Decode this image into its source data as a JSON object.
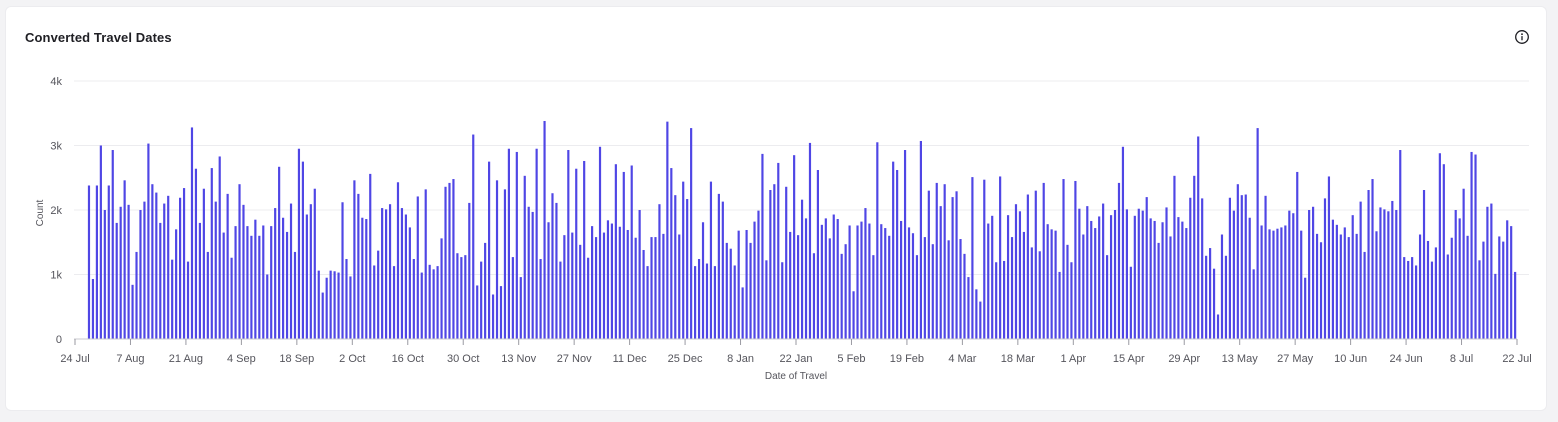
{
  "card": {
    "title": "Converted Travel Dates",
    "info_icon": "info-circle-icon"
  },
  "colors": {
    "bar": "#4f46e5",
    "grid": "#ececef",
    "axis": "#55555c"
  },
  "chart_data": {
    "type": "bar",
    "xlabel": "Date of Travel",
    "ylabel": "Count",
    "ylim": [
      0,
      4000
    ],
    "y_ticks": [
      {
        "value": 0,
        "label": "0"
      },
      {
        "value": 1000,
        "label": "1k"
      },
      {
        "value": 2000,
        "label": "2k"
      },
      {
        "value": 3000,
        "label": "3k"
      },
      {
        "value": 4000,
        "label": "4k"
      }
    ],
    "x_ticks": [
      "24 Jul",
      "7 Aug",
      "21 Aug",
      "4 Sep",
      "18 Sep",
      "2 Oct",
      "16 Oct",
      "30 Oct",
      "13 Nov",
      "27 Nov",
      "11 Dec",
      "25 Dec",
      "8 Jan",
      "22 Jan",
      "5 Feb",
      "19 Feb",
      "4 Mar",
      "18 Mar",
      "1 Apr",
      "15 Apr",
      "29 Apr",
      "13 May",
      "27 May",
      "10 Jun",
      "24 Jun",
      "8 Jul",
      "22 Jul"
    ],
    "grid": true,
    "legend": "none",
    "days_per_tick": 14,
    "values": [
      2380,
      930,
      2380,
      3000,
      2000,
      2380,
      2930,
      1800,
      2050,
      2460,
      2080,
      840,
      1350,
      2000,
      2130,
      3030,
      2400,
      2270,
      1800,
      2100,
      2220,
      1230,
      1700,
      2190,
      2340,
      1200,
      3280,
      2640,
      1800,
      2330,
      1350,
      2650,
      2130,
      2830,
      1650,
      2250,
      1260,
      1750,
      2400,
      2080,
      1750,
      1600,
      1850,
      1600,
      1760,
      1000,
      1750,
      2030,
      2670,
      1880,
      1660,
      2100,
      1350,
      2950,
      2750,
      1930,
      2090,
      2330,
      1060,
      720,
      950,
      1060,
      1050,
      1030,
      2120,
      1240,
      970,
      2460,
      2250,
      1880,
      1860,
      2560,
      1140,
      1370,
      2030,
      2010,
      2090,
      1130,
      2430,
      2030,
      1930,
      1730,
      1240,
      2210,
      1030,
      2320,
      1150,
      1080,
      1130,
      1560,
      2360,
      2420,
      2480,
      1330,
      1270,
      1300,
      2110,
      3170,
      830,
      1200,
      1490,
      2750,
      690,
      2460,
      820,
      2320,
      2950,
      1270,
      2900,
      960,
      2530,
      2050,
      1970,
      2950,
      1240,
      3380,
      1810,
      2260,
      2110,
      1200,
      1610,
      2930,
      1650,
      2640,
      1460,
      2760,
      1260,
      1750,
      1580,
      2980,
      1650,
      1840,
      1790,
      2710,
      1740,
      2590,
      1690,
      2690,
      1570,
      2000,
      1380,
      1130,
      1580,
      1580,
      2090,
      1630,
      3370,
      2650,
      2230,
      1620,
      2440,
      2170,
      3270,
      1130,
      1240,
      1810,
      1170,
      2440,
      1130,
      2250,
      2130,
      1490,
      1400,
      1140,
      1680,
      800,
      1690,
      1490,
      1820,
      1990,
      2870,
      1220,
      2310,
      2400,
      2730,
      1190,
      2360,
      1660,
      2850,
      1610,
      2160,
      1870,
      3040,
      1330,
      2620,
      1770,
      1870,
      1560,
      1930,
      1860,
      1320,
      1470,
      1760,
      740,
      1760,
      1820,
      2030,
      1790,
      1300,
      3050,
      1780,
      1720,
      1600,
      2750,
      2620,
      1830,
      2930,
      1730,
      1640,
      1300,
      3070,
      1580,
      2300,
      1470,
      2420,
      2060,
      2400,
      1530,
      2200,
      2290,
      1550,
      1320,
      960,
      2510,
      770,
      580,
      2470,
      1790,
      1910,
      1190,
      2520,
      1210,
      1920,
      1580,
      2090,
      1980,
      1660,
      2240,
      1420,
      2300,
      1360,
      2420,
      1780,
      1700,
      1680,
      1040,
      2480,
      1460,
      1190,
      2450,
      2020,
      1620,
      2060,
      1830,
      1720,
      1900,
      2100,
      1300,
      1920,
      2000,
      2420,
      2980,
      2010,
      1120,
      1910,
      2020,
      1990,
      2200,
      1870,
      1830,
      1490,
      1810,
      2040,
      1590,
      2530,
      1890,
      1820,
      1720,
      2190,
      2530,
      3140,
      2180,
      1290,
      1410,
      1090,
      380,
      1620,
      1290,
      2190,
      1990,
      2400,
      2230,
      2240,
      1880,
      1080,
      3270,
      1760,
      2220,
      1700,
      1680,
      1710,
      1730,
      1760,
      1990,
      1950,
      2590,
      1680,
      950,
      2000,
      2050,
      1630,
      1500,
      2180,
      2520,
      1850,
      1770,
      1620,
      1730,
      1580,
      1920,
      1630,
      2130,
      1350,
      2310,
      2480,
      1670,
      2040,
      2010,
      1980,
      2140,
      2000,
      2930,
      1270,
      1210,
      1270,
      1140,
      1620,
      2310,
      1520,
      1200,
      1420,
      2880,
      2710,
      1310,
      1570,
      2000,
      1870,
      2330,
      1600,
      2900,
      2860,
      1220,
      1510,
      2050,
      2100,
      1010,
      1590,
      1510,
      1840,
      1750,
      1040,
      2500,
      1930,
      1870,
      2650,
      1840,
      2890,
      1460,
      1080,
      2090,
      1850,
      1820,
      2260,
      1070,
      1700,
      2100,
      1200,
      2240,
      1070,
      2030,
      1200,
      1990,
      2120,
      2170,
      1560,
      1200,
      2940,
      870,
      1500,
      2130,
      1390,
      1030,
      3060,
      1970,
      1990,
      2360,
      970,
      1930,
      2450
    ]
  }
}
